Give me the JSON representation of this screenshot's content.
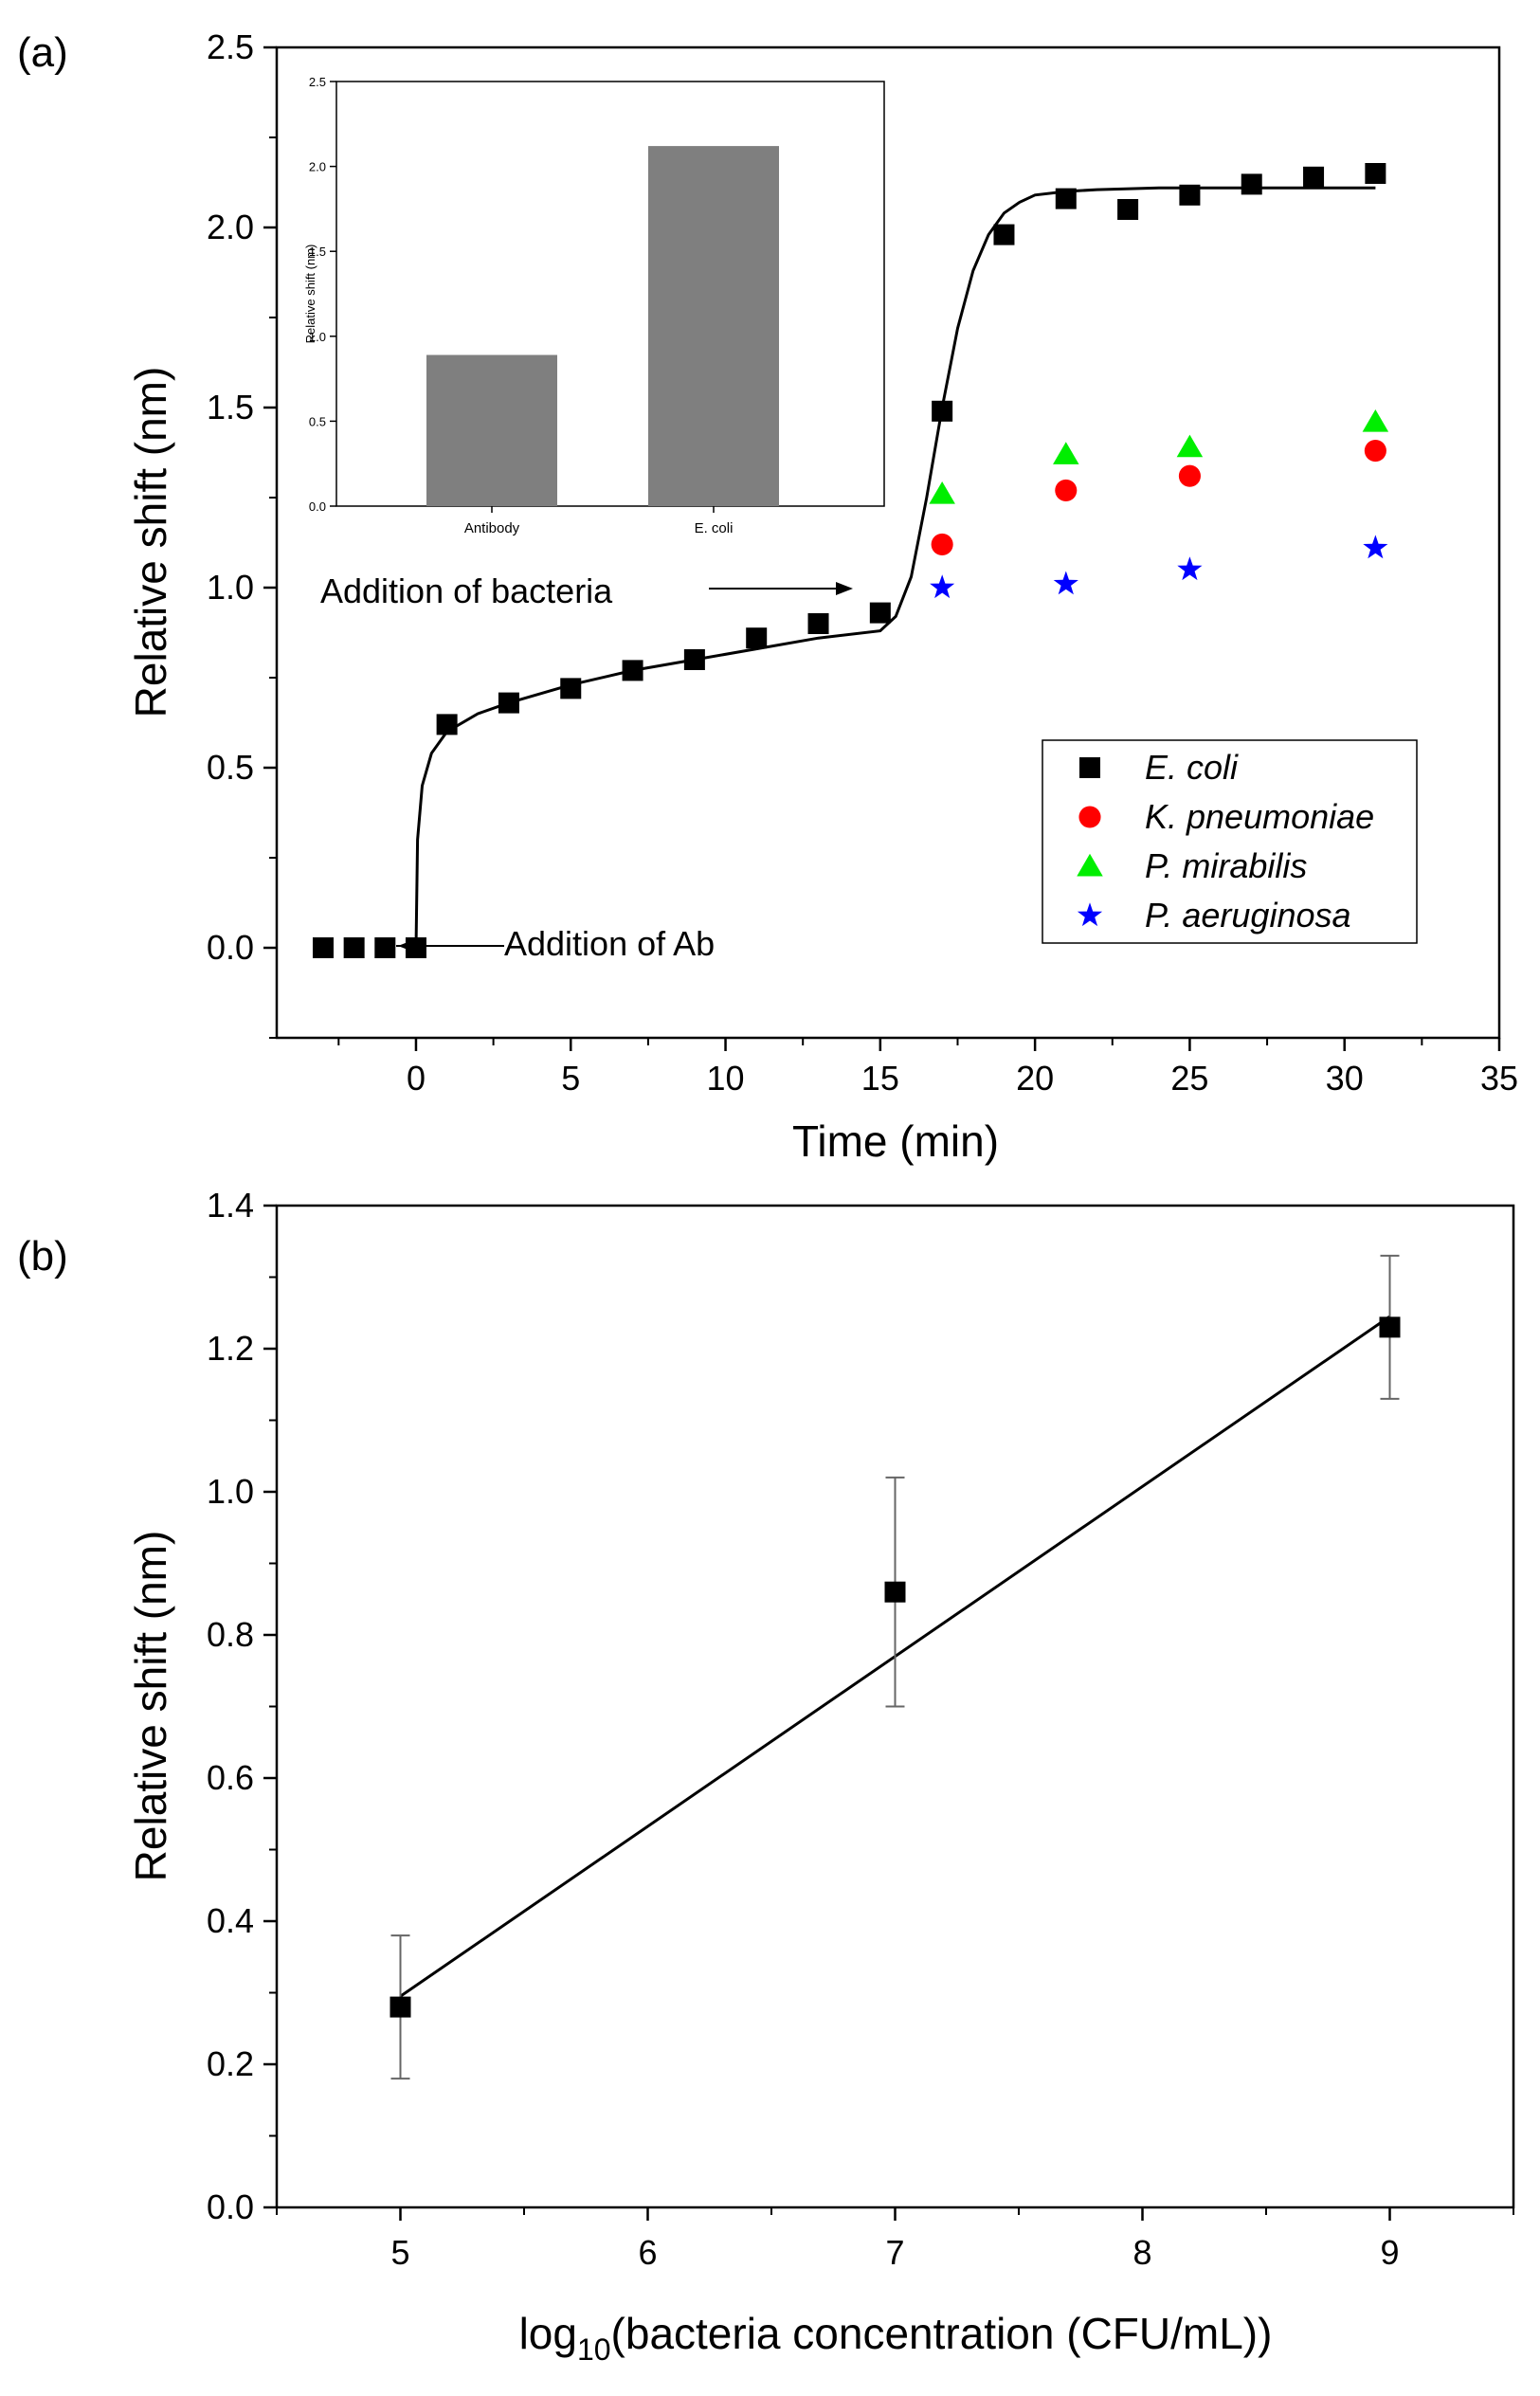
{
  "chart_data": [
    {
      "panel_label": "(a)",
      "type": "scatter",
      "xlabel": "Time (min)",
      "ylabel": "Relative shift (nm)",
      "xlim": [
        -4.5,
        35
      ],
      "ylim": [
        -0.25,
        2.5
      ],
      "xticks": [
        0,
        5,
        10,
        15,
        20,
        25,
        30,
        35
      ],
      "xtick_labels": [
        "0",
        "5",
        "10",
        "15",
        "20",
        "25",
        "30",
        "35"
      ],
      "yticks": [
        0.0,
        0.5,
        1.0,
        1.5,
        2.0,
        2.5
      ],
      "ytick_labels": [
        "0.0",
        "0.5",
        "1.0",
        "1.5",
        "2.0",
        "2.5"
      ],
      "legend_position": "lower-right",
      "series": [
        {
          "name": "E. coli",
          "marker": "square",
          "color": "#000000",
          "x": [
            -3,
            -2,
            -1,
            0,
            1,
            3,
            5,
            7,
            9,
            11,
            13,
            15,
            17,
            19,
            21,
            23,
            25,
            27,
            29,
            31
          ],
          "y": [
            0.0,
            0.0,
            0.0,
            0.0,
            0.62,
            0.68,
            0.72,
            0.77,
            0.8,
            0.86,
            0.9,
            0.93,
            1.49,
            1.98,
            2.08,
            2.05,
            2.09,
            2.12,
            2.14,
            2.15
          ]
        },
        {
          "name": "K. pneumoniae",
          "marker": "circle",
          "color": "#ff0000",
          "x": [
            17,
            21,
            25,
            31
          ],
          "y": [
            1.12,
            1.27,
            1.31,
            1.38
          ]
        },
        {
          "name": "P. mirabilis",
          "marker": "triangle",
          "color": "#00ee00",
          "x": [
            17,
            21,
            25,
            31
          ],
          "y": [
            1.26,
            1.37,
            1.39,
            1.46
          ]
        },
        {
          "name": "P. aeruginosa",
          "marker": "star",
          "color": "#0000ff",
          "x": [
            17,
            21,
            25,
            31
          ],
          "y": [
            1.0,
            1.01,
            1.05,
            1.11
          ]
        }
      ],
      "fit_line": {
        "x": [
          0,
          0.05,
          0.2,
          0.5,
          1,
          2,
          3,
          5,
          7,
          9,
          11,
          13,
          15,
          15.5,
          16,
          16.5,
          17,
          17.5,
          18,
          18.5,
          19,
          19.5,
          20,
          21,
          22,
          24,
          26,
          28,
          30,
          31
        ],
        "y": [
          0.0,
          0.3,
          0.45,
          0.54,
          0.6,
          0.65,
          0.68,
          0.73,
          0.77,
          0.8,
          0.83,
          0.86,
          0.88,
          0.92,
          1.03,
          1.25,
          1.5,
          1.72,
          1.88,
          1.98,
          2.04,
          2.07,
          2.09,
          2.1,
          2.105,
          2.11,
          2.11,
          2.11,
          2.11,
          2.11
        ]
      },
      "annotations": [
        {
          "text": "Addition of bacteria",
          "x": 8.0,
          "y": 1.0
        },
        {
          "text": "Addition of Ab",
          "x": 5.5,
          "y": 0.02
        }
      ],
      "inset": {
        "type": "bar",
        "categories": [
          "Antibody",
          "E. coli"
        ],
        "values": [
          0.89,
          2.12
        ],
        "ylabel": "Relative shift (nm)",
        "ylim": [
          0,
          2.5
        ],
        "yticks": [
          0.0,
          0.5,
          1.0,
          1.5,
          2.0,
          2.5
        ],
        "ytick_labels": [
          "0.0",
          "0.5",
          "1.0",
          "1.5",
          "2.0",
          "2.5"
        ],
        "bar_color": "#7f7f7f"
      }
    },
    {
      "panel_label": "(b)",
      "type": "scatter",
      "xlabel_prefix": "log",
      "xlabel_subscript": "10",
      "xlabel_suffix": "(bacteria concentration (CFU/mL))",
      "ylabel": "Relative shift (nm)",
      "xlim": [
        4.5,
        9.5
      ],
      "ylim": [
        0.0,
        1.4
      ],
      "xticks": [
        5,
        6,
        7,
        8,
        9
      ],
      "xtick_labels": [
        "5",
        "6",
        "7",
        "8",
        "9"
      ],
      "yticks": [
        0.0,
        0.2,
        0.4,
        0.6,
        0.8,
        1.0,
        1.2,
        1.4
      ],
      "ytick_labels": [
        "0.0",
        "0.2",
        "0.4",
        "0.6",
        "0.8",
        "1.0",
        "1.2",
        "1.4"
      ],
      "series": [
        {
          "name": "Relative shift",
          "marker": "square",
          "color": "#000000",
          "x": [
            5,
            7,
            9
          ],
          "y": [
            0.28,
            0.86,
            1.23
          ],
          "err": [
            0.1,
            0.16,
            0.1
          ]
        }
      ],
      "fit_line": {
        "x": [
          5,
          9
        ],
        "y": [
          0.295,
          1.245
        ]
      }
    }
  ]
}
